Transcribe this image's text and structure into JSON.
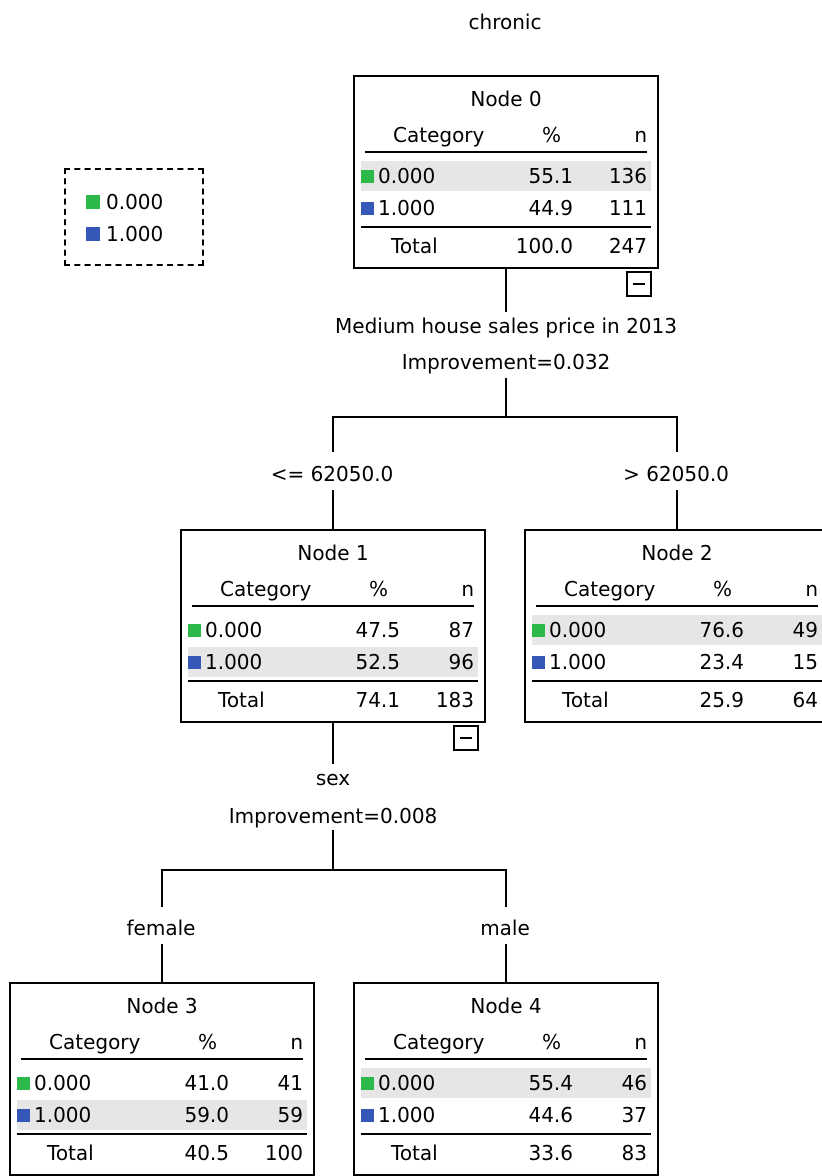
{
  "title": "chronic",
  "legend": [
    {
      "label": "0.000",
      "color": "#2db84a"
    },
    {
      "label": "1.000",
      "color": "#3557b7"
    }
  ],
  "col_headers": {
    "category": "Category",
    "pct": "%",
    "n": "n",
    "total": "Total"
  },
  "nodes": {
    "n0": {
      "name": "Node 0",
      "rows": [
        {
          "cat": "0.000",
          "pct": "55.1",
          "n": "136"
        },
        {
          "cat": "1.000",
          "pct": "44.9",
          "n": "111"
        }
      ],
      "total_pct": "100.0",
      "total_n": "247"
    },
    "n1": {
      "name": "Node 1",
      "rows": [
        {
          "cat": "0.000",
          "pct": "47.5",
          "n": "87"
        },
        {
          "cat": "1.000",
          "pct": "52.5",
          "n": "96"
        }
      ],
      "total_pct": "74.1",
      "total_n": "183"
    },
    "n2": {
      "name": "Node 2",
      "rows": [
        {
          "cat": "0.000",
          "pct": "76.6",
          "n": "49"
        },
        {
          "cat": "1.000",
          "pct": "23.4",
          "n": "15"
        }
      ],
      "total_pct": "25.9",
      "total_n": "64"
    },
    "n3": {
      "name": "Node 3",
      "rows": [
        {
          "cat": "0.000",
          "pct": "41.0",
          "n": "41"
        },
        {
          "cat": "1.000",
          "pct": "59.0",
          "n": "59"
        }
      ],
      "total_pct": "40.5",
      "total_n": "100"
    },
    "n4": {
      "name": "Node 4",
      "rows": [
        {
          "cat": "0.000",
          "pct": "55.4",
          "n": "46"
        },
        {
          "cat": "1.000",
          "pct": "44.6",
          "n": "37"
        }
      ],
      "total_pct": "33.6",
      "total_n": "83"
    }
  },
  "splits": {
    "s0": {
      "variable": "Medium house sales price in 2013",
      "improvement": "Improvement=0.032",
      "left": "<= 62050.0",
      "right": "> 62050.0"
    },
    "s1": {
      "variable": "sex",
      "improvement": "Improvement=0.008",
      "left": "female",
      "right": "male"
    }
  }
}
